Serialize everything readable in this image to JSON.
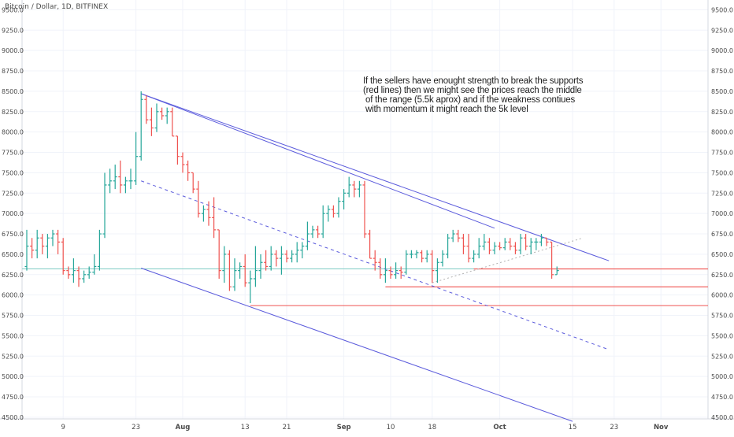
{
  "chart_data": {
    "type": "ohlc",
    "title": "Bitcoin / Dollar, 1D, BITFINEX",
    "x_ticks": [
      "9",
      "23",
      "Aug",
      "13",
      "21",
      "Sep",
      "10",
      "18",
      "Oct",
      "15",
      "23",
      "Nov"
    ],
    "y_ticks": [
      "4500.0",
      "4750.0",
      "5000.0",
      "5250.0",
      "5500.0",
      "5750.0",
      "6000.0",
      "6250.0",
      "6500.0",
      "6750.0",
      "7000.0",
      "7250.0",
      "7500.0",
      "7750.0",
      "8000.0",
      "8250.0",
      "8500.0",
      "8750.0",
      "9000.0",
      "9250.0",
      "9500.0"
    ],
    "ylim": [
      4480,
      9620
    ],
    "dates": [
      "2018-07-02",
      "2018-07-03",
      "2018-07-04",
      "2018-07-05",
      "2018-07-06",
      "2018-07-07",
      "2018-07-08",
      "2018-07-09",
      "2018-07-10",
      "2018-07-11",
      "2018-07-12",
      "2018-07-13",
      "2018-07-14",
      "2018-07-15",
      "2018-07-16",
      "2018-07-17",
      "2018-07-18",
      "2018-07-19",
      "2018-07-20",
      "2018-07-21",
      "2018-07-22",
      "2018-07-23",
      "2018-07-24",
      "2018-07-25",
      "2018-07-26",
      "2018-07-27",
      "2018-07-28",
      "2018-07-29",
      "2018-07-30",
      "2018-07-31",
      "2018-08-01",
      "2018-08-02",
      "2018-08-03",
      "2018-08-04",
      "2018-08-05",
      "2018-08-06",
      "2018-08-07",
      "2018-08-08",
      "2018-08-09",
      "2018-08-10",
      "2018-08-11",
      "2018-08-12",
      "2018-08-13",
      "2018-08-14",
      "2018-08-15",
      "2018-08-16",
      "2018-08-17",
      "2018-08-18",
      "2018-08-19",
      "2018-08-20",
      "2018-08-21",
      "2018-08-22",
      "2018-08-23",
      "2018-08-24",
      "2018-08-25",
      "2018-08-26",
      "2018-08-27",
      "2018-08-28",
      "2018-08-29",
      "2018-08-30",
      "2018-08-31",
      "2018-09-01",
      "2018-09-02",
      "2018-09-03",
      "2018-09-04",
      "2018-09-05",
      "2018-09-06",
      "2018-09-07",
      "2018-09-08",
      "2018-09-09",
      "2018-09-10",
      "2018-09-11",
      "2018-09-12",
      "2018-09-13",
      "2018-09-14",
      "2018-09-15",
      "2018-09-16",
      "2018-09-17",
      "2018-09-18",
      "2018-09-19",
      "2018-09-20",
      "2018-09-21",
      "2018-09-22",
      "2018-09-23",
      "2018-09-24",
      "2018-09-25",
      "2018-09-26",
      "2018-09-27",
      "2018-09-28",
      "2018-09-29",
      "2018-09-30",
      "2018-10-01",
      "2018-10-02",
      "2018-10-03",
      "2018-10-04",
      "2018-10-05",
      "2018-10-06",
      "2018-10-07",
      "2018-10-08",
      "2018-10-09",
      "2018-10-10",
      "2018-10-11",
      "2018-10-12"
    ],
    "ohlc": [
      [
        6350,
        6800,
        6300,
        6600
      ],
      [
        6600,
        6700,
        6450,
        6550
      ],
      [
        6550,
        6800,
        6450,
        6700
      ],
      [
        6700,
        6750,
        6500,
        6600
      ],
      [
        6600,
        6750,
        6450,
        6700
      ],
      [
        6700,
        6800,
        6600,
        6750
      ],
      [
        6750,
        6800,
        6500,
        6650
      ],
      [
        6650,
        6700,
        6250,
        6300
      ],
      [
        6300,
        6350,
        6200,
        6250
      ],
      [
        6250,
        6450,
        6150,
        6300
      ],
      [
        6300,
        6350,
        6100,
        6200
      ],
      [
        6200,
        6300,
        6150,
        6250
      ],
      [
        6250,
        6350,
        6200,
        6280
      ],
      [
        6280,
        6500,
        6250,
        6350
      ],
      [
        6350,
        6800,
        6300,
        6750
      ],
      [
        6750,
        7500,
        6700,
        7350
      ],
      [
        7350,
        7550,
        7250,
        7400
      ],
      [
        7400,
        7600,
        7300,
        7450
      ],
      [
        7450,
        7650,
        7250,
        7350
      ],
      [
        7350,
        7450,
        7250,
        7400
      ],
      [
        7400,
        7550,
        7300,
        7400
      ],
      [
        7400,
        8000,
        7350,
        7700
      ],
      [
        7700,
        8500,
        7650,
        8400
      ],
      [
        8400,
        8450,
        8100,
        8150
      ],
      [
        8150,
        8300,
        7950,
        8050
      ],
      [
        8050,
        8350,
        8000,
        8250
      ],
      [
        8250,
        8300,
        8150,
        8200
      ],
      [
        8200,
        8300,
        8100,
        8250
      ],
      [
        8250,
        8300,
        7950,
        7950
      ],
      [
        7950,
        7950,
        7600,
        7700
      ],
      [
        7700,
        7750,
        7500,
        7600
      ],
      [
        7600,
        7650,
        7400,
        7500
      ],
      [
        7500,
        7500,
        7250,
        7300
      ],
      [
        7300,
        7400,
        6950,
        7000
      ],
      [
        7000,
        7100,
        6900,
        7050
      ],
      [
        7050,
        7150,
        6850,
        6950
      ],
      [
        6950,
        7200,
        6700,
        6800
      ],
      [
        6800,
        6800,
        6200,
        6300
      ],
      [
        6300,
        6600,
        6150,
        6500
      ],
      [
        6500,
        6550,
        6050,
        6100
      ],
      [
        6100,
        6450,
        6050,
        6300
      ],
      [
        6300,
        6400,
        6200,
        6350
      ],
      [
        6350,
        6500,
        6100,
        6150
      ],
      [
        6150,
        6300,
        5900,
        6200
      ],
      [
        6200,
        6600,
        6100,
        6300
      ],
      [
        6300,
        6500,
        6200,
        6400
      ],
      [
        6400,
        6550,
        6300,
        6350
      ],
      [
        6350,
        6600,
        6300,
        6500
      ],
      [
        6500,
        6550,
        6350,
        6450
      ],
      [
        6450,
        6600,
        6250,
        6500
      ],
      [
        6500,
        6550,
        6400,
        6450
      ],
      [
        6450,
        6550,
        6400,
        6500
      ],
      [
        6500,
        6650,
        6400,
        6550
      ],
      [
        6550,
        6650,
        6450,
        6600
      ],
      [
        6600,
        6900,
        6550,
        6750
      ],
      [
        6750,
        6850,
        6700,
        6800
      ],
      [
        6800,
        6850,
        6700,
        6750
      ],
      [
        6750,
        7100,
        6700,
        7000
      ],
      [
        7000,
        7100,
        6900,
        7050
      ],
      [
        7050,
        7100,
        6950,
        7000
      ],
      [
        7000,
        7200,
        6950,
        7150
      ],
      [
        7150,
        7300,
        7050,
        7250
      ],
      [
        7250,
        7450,
        7200,
        7350
      ],
      [
        7350,
        7400,
        7200,
        7300
      ],
      [
        7300,
        7400,
        7200,
        7350
      ],
      [
        7350,
        7400,
        6700,
        6750
      ],
      [
        6750,
        6800,
        6450,
        6450
      ],
      [
        6450,
        6550,
        6300,
        6400
      ],
      [
        6400,
        6450,
        6200,
        6250
      ],
      [
        6250,
        6450,
        6150,
        6300
      ],
      [
        6300,
        6350,
        6200,
        6250
      ],
      [
        6250,
        6400,
        6200,
        6300
      ],
      [
        6300,
        6350,
        6200,
        6280
      ],
      [
        6280,
        6550,
        6250,
        6500
      ],
      [
        6500,
        6550,
        6450,
        6500
      ],
      [
        6500,
        6550,
        6450,
        6520
      ],
      [
        6520,
        6550,
        6400,
        6450
      ],
      [
        6450,
        6550,
        6400,
        6500
      ],
      [
        6500,
        6550,
        6150,
        6300
      ],
      [
        6300,
        6450,
        6150,
        6400
      ],
      [
        6400,
        6550,
        6350,
        6500
      ],
      [
        6500,
        6750,
        6450,
        6700
      ],
      [
        6700,
        6800,
        6650,
        6750
      ],
      [
        6750,
        6800,
        6650,
        6700
      ],
      [
        6700,
        6750,
        6500,
        6600
      ],
      [
        6600,
        6750,
        6400,
        6450
      ],
      [
        6450,
        6550,
        6400,
        6500
      ],
      [
        6500,
        6700,
        6450,
        6600
      ],
      [
        6600,
        6750,
        6550,
        6650
      ],
      [
        6650,
        6700,
        6500,
        6550
      ],
      [
        6550,
        6650,
        6500,
        6600
      ],
      [
        6600,
        6650,
        6550,
        6580
      ],
      [
        6580,
        6700,
        6550,
        6650
      ],
      [
        6650,
        6700,
        6550,
        6600
      ],
      [
        6600,
        6650,
        6500,
        6550
      ],
      [
        6550,
        6750,
        6500,
        6700
      ],
      [
        6700,
        6750,
        6550,
        6600
      ],
      [
        6600,
        6700,
        6500,
        6650
      ],
      [
        6650,
        6700,
        6550,
        6650
      ],
      [
        6650,
        6750,
        6600,
        6700
      ],
      [
        6700,
        6700,
        6600,
        6650
      ],
      [
        6650,
        6650,
        6200,
        6250
      ],
      [
        6250,
        6350,
        6250,
        6300
      ]
    ],
    "trendlines": [
      {
        "from": [
          "2018-07-24",
          8470
        ],
        "to": [
          "2018-10-22",
          6420
        ],
        "style": "blue"
      },
      {
        "from": [
          "2018-07-24",
          8470
        ],
        "to": [
          "2018-09-30",
          6820
        ],
        "style": "blue"
      },
      {
        "from": [
          "2018-07-24",
          6330
        ],
        "to": [
          "2018-10-15",
          4450
        ],
        "style": "blue"
      },
      {
        "from": [
          "2018-07-24",
          7400
        ],
        "to": [
          "2018-10-22",
          5330
        ],
        "style": "blue-dashed"
      },
      {
        "from": [
          "2018-09-18",
          6150
        ],
        "to": [
          "2018-10-17",
          6700
        ],
        "style": "grey-dotted"
      }
    ],
    "support_lines": [
      {
        "from": "2018-09-26",
        "price": 6320
      },
      {
        "from": "2018-09-09",
        "price": 6100
      },
      {
        "from": "2018-08-14",
        "price": 5870
      }
    ],
    "current_price_line": 6320,
    "annotation": "If the sellers have enought strength to break the supports\n(red lines) then we might see the prices reach the middle\n of the range (5.5k aprox) and if the weakness contiues\n with momentum it might reach the 5k level",
    "colors": {
      "up": "#26a69a",
      "down": "#ef5350",
      "trend": "#5b5bdc",
      "support": "#ef5350",
      "price_line": "#80cbc4",
      "axis_text": "#4a4a4a",
      "grid": "#f0f3fa"
    }
  }
}
